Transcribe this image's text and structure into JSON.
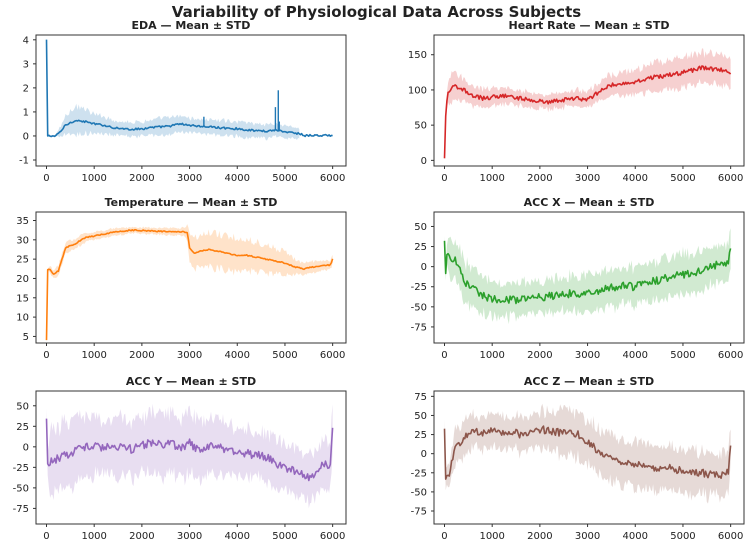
{
  "figure_title": "Variability of Physiological Data Across Subjects",
  "chart_data": [
    {
      "type": "line",
      "title": "EDA — Mean ± STD",
      "color": "#1f77b4",
      "xlim": [
        -220,
        6280
      ],
      "ylim": [
        -1.25,
        4.2
      ],
      "xticks": [
        0,
        1000,
        2000,
        3000,
        4000,
        5000,
        6000
      ],
      "yticks": [
        -1,
        0,
        1,
        2,
        3,
        4
      ],
      "x_end": 6000,
      "band_end": 5300,
      "mean": [
        [
          0,
          4.0
        ],
        [
          6,
          0.0
        ],
        [
          200,
          0.0
        ],
        [
          300,
          0.2
        ],
        [
          400,
          0.45
        ],
        [
          500,
          0.55
        ],
        [
          600,
          0.65
        ],
        [
          700,
          0.62
        ],
        [
          800,
          0.6
        ],
        [
          900,
          0.55
        ],
        [
          1000,
          0.5
        ],
        [
          1200,
          0.45
        ],
        [
          1400,
          0.35
        ],
        [
          1600,
          0.3
        ],
        [
          1800,
          0.28
        ],
        [
          2000,
          0.3
        ],
        [
          2200,
          0.35
        ],
        [
          2400,
          0.38
        ],
        [
          2600,
          0.42
        ],
        [
          2800,
          0.5
        ],
        [
          3000,
          0.45
        ],
        [
          3200,
          0.4
        ],
        [
          3400,
          0.38
        ],
        [
          3600,
          0.35
        ],
        [
          3800,
          0.32
        ],
        [
          4000,
          0.3
        ],
        [
          4200,
          0.25
        ],
        [
          4400,
          0.22
        ],
        [
          4600,
          0.2
        ],
        [
          4800,
          0.25
        ],
        [
          5000,
          0.18
        ],
        [
          5200,
          0.12
        ],
        [
          5300,
          0.1
        ],
        [
          5400,
          0.02
        ],
        [
          6000,
          0.02
        ]
      ],
      "std": [
        [
          0,
          0.0
        ],
        [
          200,
          0.05
        ],
        [
          400,
          0.4
        ],
        [
          500,
          0.5
        ],
        [
          700,
          0.6
        ],
        [
          800,
          0.5
        ],
        [
          1000,
          0.4
        ],
        [
          1500,
          0.3
        ],
        [
          2000,
          0.3
        ],
        [
          2500,
          0.35
        ],
        [
          3000,
          0.3
        ],
        [
          3500,
          0.3
        ],
        [
          4000,
          0.3
        ],
        [
          4500,
          0.3
        ],
        [
          5000,
          0.25
        ],
        [
          5300,
          0.2
        ]
      ],
      "noise": 0.04,
      "spikes": [
        [
          3300,
          0.8
        ],
        [
          4800,
          1.2
        ],
        [
          4860,
          1.9
        ],
        [
          4880,
          0.6
        ]
      ]
    },
    {
      "type": "line",
      "title": "Heart Rate — Mean ± STD",
      "color": "#d62728",
      "xlim": [
        -220,
        6280
      ],
      "ylim": [
        -8,
        178
      ],
      "xticks": [
        0,
        1000,
        2000,
        3000,
        4000,
        5000,
        6000
      ],
      "yticks": [
        0,
        50,
        100,
        150
      ],
      "x_end": 6000,
      "band_end": 6000,
      "mean": [
        [
          0,
          2
        ],
        [
          20,
          60
        ],
        [
          60,
          95
        ],
        [
          200,
          105
        ],
        [
          400,
          100
        ],
        [
          600,
          92
        ],
        [
          800,
          88
        ],
        [
          1000,
          90
        ],
        [
          1200,
          92
        ],
        [
          1400,
          90
        ],
        [
          1600,
          88
        ],
        [
          1800,
          86
        ],
        [
          2000,
          84
        ],
        [
          2200,
          83
        ],
        [
          2400,
          85
        ],
        [
          2600,
          87
        ],
        [
          2800,
          88
        ],
        [
          3000,
          86
        ],
        [
          3200,
          95
        ],
        [
          3400,
          105
        ],
        [
          3600,
          108
        ],
        [
          3800,
          110
        ],
        [
          4000,
          112
        ],
        [
          4200,
          115
        ],
        [
          4400,
          118
        ],
        [
          4600,
          120
        ],
        [
          4800,
          122
        ],
        [
          5000,
          125
        ],
        [
          5200,
          128
        ],
        [
          5400,
          132
        ],
        [
          5600,
          130
        ],
        [
          5800,
          128
        ],
        [
          6000,
          125
        ]
      ],
      "std": [
        [
          0,
          0
        ],
        [
          100,
          20
        ],
        [
          500,
          15
        ],
        [
          1000,
          12
        ],
        [
          2000,
          10
        ],
        [
          3000,
          12
        ],
        [
          4000,
          18
        ],
        [
          5000,
          22
        ],
        [
          6000,
          20
        ]
      ],
      "noise": 3
    },
    {
      "type": "line",
      "title": "Temperature — Mean ± STD",
      "color": "#ff7f0e",
      "xlim": [
        -220,
        6280
      ],
      "ylim": [
        3.3,
        37.2
      ],
      "xticks": [
        0,
        1000,
        2000,
        3000,
        4000,
        5000,
        6000
      ],
      "yticks": [
        5,
        10,
        15,
        20,
        25,
        30,
        35
      ],
      "x_end": 6000,
      "band_end": 6000,
      "mean": [
        [
          0,
          4
        ],
        [
          15,
          22
        ],
        [
          60,
          22.5
        ],
        [
          150,
          21
        ],
        [
          250,
          22
        ],
        [
          300,
          24
        ],
        [
          400,
          28
        ],
        [
          600,
          29
        ],
        [
          800,
          30.5
        ],
        [
          1000,
          31
        ],
        [
          1200,
          31.5
        ],
        [
          1400,
          32
        ],
        [
          1600,
          32.3
        ],
        [
          1800,
          32.5
        ],
        [
          2000,
          32.4
        ],
        [
          2200,
          32.3
        ],
        [
          2400,
          32.2
        ],
        [
          2600,
          32.2
        ],
        [
          2800,
          32.1
        ],
        [
          2950,
          32
        ],
        [
          3000,
          28
        ],
        [
          3100,
          26.5
        ],
        [
          3200,
          27
        ],
        [
          3400,
          27.5
        ],
        [
          3600,
          27
        ],
        [
          3800,
          26.5
        ],
        [
          4000,
          26
        ],
        [
          4200,
          26
        ],
        [
          4400,
          25.5
        ],
        [
          4600,
          25
        ],
        [
          4800,
          24.5
        ],
        [
          5000,
          24
        ],
        [
          5100,
          23.5
        ],
        [
          5200,
          23
        ],
        [
          5400,
          22.5
        ],
        [
          5600,
          23
        ],
        [
          5800,
          23.3
        ],
        [
          5950,
          23.5
        ],
        [
          6000,
          25
        ]
      ],
      "std": [
        [
          0,
          0
        ],
        [
          100,
          1
        ],
        [
          400,
          1.5
        ],
        [
          1000,
          1.0
        ],
        [
          2000,
          0.8
        ],
        [
          2900,
          1.0
        ],
        [
          3000,
          4
        ],
        [
          3300,
          4.5
        ],
        [
          4000,
          4.5
        ],
        [
          5000,
          3
        ],
        [
          5300,
          1.5
        ],
        [
          6000,
          1.2
        ]
      ],
      "noise": 0.15
    },
    {
      "type": "line",
      "title": "ACC X — Mean ± STD",
      "color": "#2ca02c",
      "xlim": [
        -220,
        6280
      ],
      "ylim": [
        -95,
        68
      ],
      "xticks": [
        0,
        1000,
        2000,
        3000,
        4000,
        5000,
        6000
      ],
      "yticks": [
        -75,
        -50,
        -25,
        0,
        25,
        50
      ],
      "x_end": 6000,
      "band_end": 6000,
      "mean": [
        [
          0,
          30
        ],
        [
          20,
          -15
        ],
        [
          50,
          12
        ],
        [
          200,
          10
        ],
        [
          300,
          0
        ],
        [
          400,
          -15
        ],
        [
          500,
          -25
        ],
        [
          700,
          -32
        ],
        [
          900,
          -38
        ],
        [
          1100,
          -40
        ],
        [
          1300,
          -40
        ],
        [
          1500,
          -42
        ],
        [
          1700,
          -40
        ],
        [
          1900,
          -38
        ],
        [
          2100,
          -38
        ],
        [
          2300,
          -36
        ],
        [
          2500,
          -35
        ],
        [
          2700,
          -33
        ],
        [
          2900,
          -36
        ],
        [
          3000,
          -32
        ],
        [
          3200,
          -30
        ],
        [
          3400,
          -28
        ],
        [
          3600,
          -25
        ],
        [
          3800,
          -24
        ],
        [
          4000,
          -25
        ],
        [
          4200,
          -20
        ],
        [
          4400,
          -18
        ],
        [
          4600,
          -15
        ],
        [
          4800,
          -12
        ],
        [
          5000,
          -10
        ],
        [
          5200,
          -8
        ],
        [
          5400,
          -5
        ],
        [
          5600,
          0
        ],
        [
          5800,
          5
        ],
        [
          5950,
          5
        ],
        [
          6000,
          22
        ]
      ],
      "std": [
        [
          0,
          5
        ],
        [
          100,
          25
        ],
        [
          400,
          25
        ],
        [
          1000,
          22
        ],
        [
          2000,
          20
        ],
        [
          3000,
          22
        ],
        [
          4000,
          24
        ],
        [
          5000,
          25
        ],
        [
          6000,
          22
        ]
      ],
      "noise": 5
    },
    {
      "type": "line",
      "title": "ACC Y — Mean ± STD",
      "color": "#9467bd",
      "xlim": [
        -220,
        6280
      ],
      "ylim": [
        -94,
        68
      ],
      "xticks": [
        0,
        1000,
        2000,
        3000,
        4000,
        5000,
        6000
      ],
      "yticks": [
        -75,
        -50,
        -25,
        0,
        25,
        50
      ],
      "x_end": 6000,
      "band_end": 6000,
      "mean": [
        [
          0,
          32
        ],
        [
          20,
          -20
        ],
        [
          200,
          -15
        ],
        [
          400,
          -10
        ],
        [
          600,
          -5
        ],
        [
          800,
          0
        ],
        [
          1000,
          0
        ],
        [
          1200,
          0
        ],
        [
          1400,
          2
        ],
        [
          1600,
          0
        ],
        [
          1800,
          -3
        ],
        [
          2000,
          2
        ],
        [
          2200,
          5
        ],
        [
          2400,
          3
        ],
        [
          2600,
          5
        ],
        [
          2800,
          -2
        ],
        [
          3000,
          5
        ],
        [
          3200,
          -5
        ],
        [
          3400,
          0
        ],
        [
          3600,
          0
        ],
        [
          3800,
          -5
        ],
        [
          4000,
          -5
        ],
        [
          4200,
          -8
        ],
        [
          4400,
          -10
        ],
        [
          4600,
          -12
        ],
        [
          4800,
          -20
        ],
        [
          5000,
          -25
        ],
        [
          5200,
          -30
        ],
        [
          5400,
          -35
        ],
        [
          5600,
          -38
        ],
        [
          5800,
          -20
        ],
        [
          5950,
          -25
        ],
        [
          6000,
          25
        ]
      ],
      "std": [
        [
          0,
          10
        ],
        [
          100,
          40
        ],
        [
          1000,
          35
        ],
        [
          2000,
          35
        ],
        [
          3000,
          38
        ],
        [
          4000,
          30
        ],
        [
          5000,
          28
        ],
        [
          6000,
          30
        ]
      ],
      "noise": 5
    },
    {
      "type": "line",
      "title": "ACC Z — Mean ± STD",
      "color": "#8c564b",
      "xlim": [
        -220,
        6280
      ],
      "ylim": [
        -92,
        82
      ],
      "xticks": [
        0,
        1000,
        2000,
        3000,
        4000,
        5000,
        6000
      ],
      "yticks": [
        -75,
        -50,
        -25,
        0,
        25,
        50,
        75
      ],
      "x_end": 6000,
      "band_end": 6000,
      "mean": [
        [
          0,
          30
        ],
        [
          20,
          -30
        ],
        [
          100,
          -25
        ],
        [
          150,
          -10
        ],
        [
          250,
          10
        ],
        [
          400,
          20
        ],
        [
          600,
          28
        ],
        [
          800,
          28
        ],
        [
          1000,
          30
        ],
        [
          1200,
          28
        ],
        [
          1400,
          30
        ],
        [
          1600,
          25
        ],
        [
          1800,
          28
        ],
        [
          2000,
          32
        ],
        [
          2200,
          30
        ],
        [
          2400,
          28
        ],
        [
          2600,
          30
        ],
        [
          2800,
          25
        ],
        [
          3000,
          15
        ],
        [
          3200,
          5
        ],
        [
          3400,
          -5
        ],
        [
          3600,
          -10
        ],
        [
          3800,
          -12
        ],
        [
          4000,
          -15
        ],
        [
          4200,
          -15
        ],
        [
          4400,
          -18
        ],
        [
          4600,
          -18
        ],
        [
          4800,
          -20
        ],
        [
          5000,
          -22
        ],
        [
          5200,
          -25
        ],
        [
          5400,
          -25
        ],
        [
          5600,
          -28
        ],
        [
          5800,
          -28
        ],
        [
          5950,
          -25
        ],
        [
          6000,
          15
        ]
      ],
      "std": [
        [
          0,
          10
        ],
        [
          200,
          25
        ],
        [
          1000,
          20
        ],
        [
          2000,
          25
        ],
        [
          3000,
          30
        ],
        [
          4000,
          30
        ],
        [
          5000,
          28
        ],
        [
          6000,
          28
        ]
      ],
      "noise": 5
    }
  ]
}
